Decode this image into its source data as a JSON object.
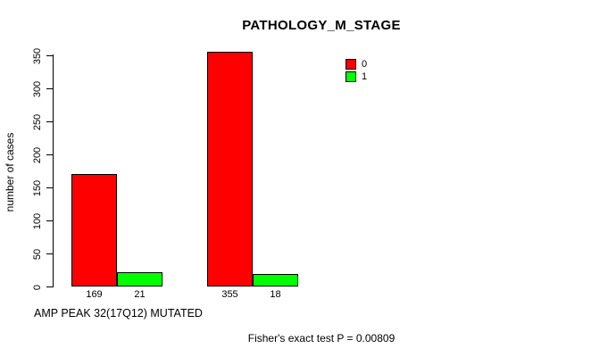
{
  "chart_data": {
    "type": "bar",
    "title": "PATHOLOGY_M_STAGE",
    "ylabel": "number of cases",
    "xlabel": "AMP PEAK 32(17Q12) MUTATED",
    "annotation": "Fisher's exact test P = 0.00809",
    "ylim": [
      0,
      350
    ],
    "yticks": [
      0,
      50,
      100,
      150,
      200,
      250,
      300,
      350
    ],
    "grid": false,
    "legend_position": "top-right",
    "series": [
      {
        "name": "0",
        "color": "#ff0000",
        "values": [
          169,
          355
        ]
      },
      {
        "name": "1",
        "color": "#00ff00",
        "values": [
          21,
          18
        ]
      }
    ],
    "bar_value_labels": [
      [
        "169",
        "355"
      ],
      [
        "21",
        "18"
      ]
    ]
  }
}
